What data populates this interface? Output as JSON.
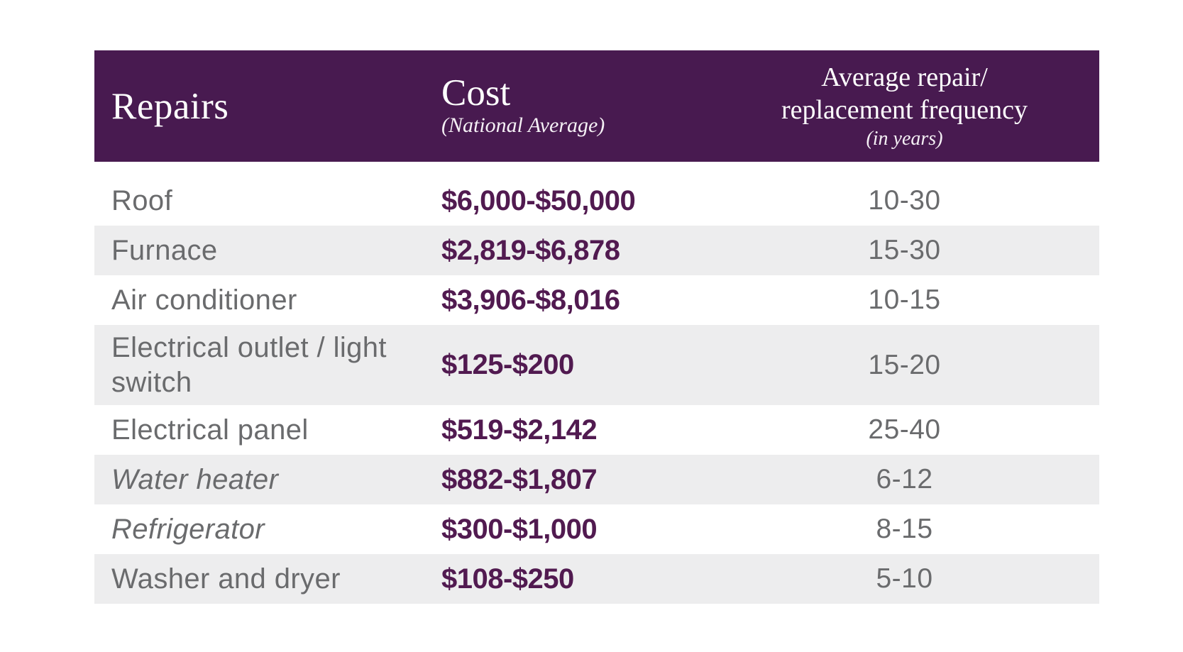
{
  "chart_data": {
    "type": "table",
    "columns": [
      "Repairs",
      "Cost (National Average)",
      "Average repair/replacement frequency (in years)"
    ],
    "rows": [
      {
        "repair": "Roof",
        "cost": "$6,000-$50,000",
        "frequency": "10-30"
      },
      {
        "repair": "Furnace",
        "cost": "$2,819-$6,878",
        "frequency": "15-30"
      },
      {
        "repair": "Air conditioner",
        "cost": "$3,906-$8,016",
        "frequency": "10-15"
      },
      {
        "repair": "Electrical outlet / light switch",
        "cost": "$125-$200",
        "frequency": "15-20"
      },
      {
        "repair": "Electrical panel",
        "cost": "$519-$2,142",
        "frequency": "25-40"
      },
      {
        "repair": "Water heater",
        "cost": "$882-$1,807",
        "frequency": "6-12"
      },
      {
        "repair": "Refrigerator",
        "cost": "$300-$1,000",
        "frequency": "8-15"
      },
      {
        "repair": "Washer and dryer",
        "cost": "$108-$250",
        "frequency": "5-10"
      }
    ]
  },
  "header": {
    "repairs_label": "Repairs",
    "cost_label": "Cost",
    "cost_sub_label": "(National Average)",
    "frequency_label_line1": "Average repair/",
    "frequency_label_line2": "replacement frequency",
    "frequency_sub_label": "(in years)"
  },
  "colors": {
    "header_bg": "#481a50",
    "header_text": "#ffffff",
    "cost_text": "#511a50",
    "body_text": "#6a6b6d",
    "row_stripe": "#ededee",
    "row_white": "#ffffff"
  }
}
